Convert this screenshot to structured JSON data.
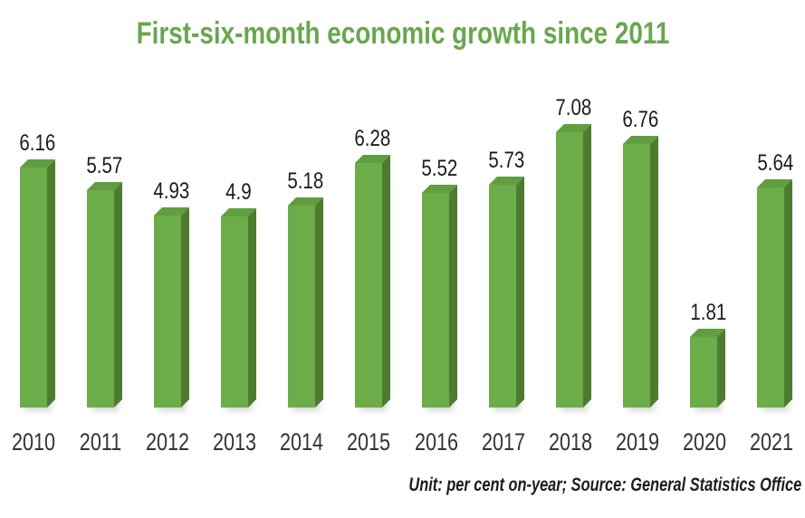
{
  "title": "First-six-month economic growth since 2011",
  "footnote": "Unit: per cent on-year; Source: General Statistics Office",
  "colors": {
    "title_green": "#69a74e",
    "bar_front": "#6cac49",
    "bar_side": "#4f7b31",
    "bar_top": "#609e40",
    "label_dark": "#1c1c1c",
    "year_label": "#333333"
  },
  "chart_data": {
    "type": "bar",
    "title": "First-six-month economic growth since 2011",
    "categories": [
      "2010",
      "2011",
      "2012",
      "2013",
      "2014",
      "2015",
      "2016",
      "2017",
      "2018",
      "2019",
      "2020",
      "2021"
    ],
    "values": [
      6.16,
      5.57,
      4.93,
      4.9,
      5.18,
      6.28,
      5.52,
      5.73,
      7.08,
      6.76,
      1.81,
      5.64
    ],
    "xlabel": "",
    "ylabel": "",
    "unit": "per cent on-year",
    "source": "General Statistics Office",
    "ylim": [
      0,
      7.5
    ],
    "grid": false,
    "legend": false,
    "data_labels": true,
    "bar_style": "3d",
    "axis_lines": false
  }
}
